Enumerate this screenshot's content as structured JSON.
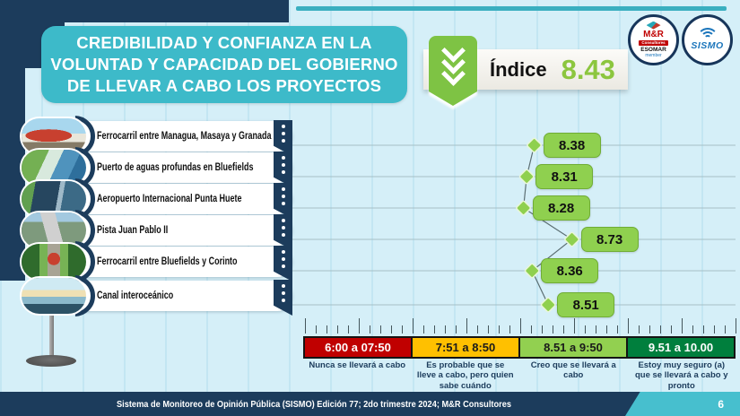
{
  "header": {
    "title_lines": [
      "CREDIBILIDAD Y CONFIANZA EN LA",
      "VOLUNTAD Y CAPACIDAD DEL GOBIERNO",
      "DE LLEVAR A CABO LOS PROYECTOS"
    ],
    "index_label": "Índice",
    "index_value": "8.43"
  },
  "logos": {
    "mr": {
      "name": "M&R Consultores",
      "line1": "M&R",
      "line2": "Consultores",
      "line3": "ESOMAR",
      "line4": "member"
    },
    "sismo": {
      "name": "SISMO",
      "text": "SISMO"
    }
  },
  "projects": [
    {
      "label": "Ferrocarril entre Managua, Masaya y Granada",
      "value": 8.38,
      "value_label": "8.38"
    },
    {
      "label": "Puerto de aguas profundas en Bluefields",
      "value": 8.31,
      "value_label": "8.31"
    },
    {
      "label": "Aeropuerto Internacional Punta Huete",
      "value": 8.28,
      "value_label": "8.28"
    },
    {
      "label": "Pista Juan Pablo II",
      "value": 8.73,
      "value_label": "8.73"
    },
    {
      "label": "Ferrocarril entre Bluefields y Corinto",
      "value": 8.36,
      "value_label": "8.36"
    },
    {
      "label": "Canal interoceánico",
      "value": 8.51,
      "value_label": "8.51"
    }
  ],
  "scale": {
    "segments": [
      {
        "range": "6:00 a 07:50",
        "desc": "Nunca se llevará a cabo",
        "color": "#c00000",
        "text_color": "#ffffff"
      },
      {
        "range": "7:51 a 8:50",
        "desc": "Es probable que se lleve a cabo, pero quien sabe cuándo",
        "color": "#ffc000",
        "text_color": "#1a1a1a"
      },
      {
        "range": "8.51 a 9:50",
        "desc": "Creo que se llevará a cabo",
        "color": "#92d050",
        "text_color": "#1a1a1a"
      },
      {
        "range": "9.51 a 10.00",
        "desc": "Estoy muy seguro (a) que se llevará a cabo y pronto",
        "color": "#007f3d",
        "text_color": "#ffffff"
      }
    ]
  },
  "footer": {
    "text": "Sistema de Monitoreo de Opinión Pública (SISMO) Edición 77; 2do trimestre 2024; M&R Consultores",
    "page_number": "6"
  },
  "chart_data": {
    "type": "scatter",
    "subtype": "horizontal dot plot with diamond markers, connected zigzag line and value labels",
    "title": "CREDIBILIDAD Y CONFIANZA EN LA VOLUNTAD Y CAPACIDAD DEL GOBIERNO DE LLEVAR A CABO LOS PROYECTOS",
    "overall_index": 8.43,
    "categories": [
      "Ferrocarril entre Managua, Masaya y Granada",
      "Puerto de aguas profundas en Bluefields",
      "Aeropuerto Internacional Punta Huete",
      "Pista Juan Pablo II",
      "Ferrocarril entre Bluefields y Corinto",
      "Canal interoceánico"
    ],
    "values": [
      8.38,
      8.31,
      8.28,
      8.73,
      8.36,
      8.51
    ],
    "xlim": [
      6,
      10
    ],
    "x_major_tick_step": 0.5,
    "x_minor_tick_step": 0.1,
    "grid": true,
    "marker": "diamond",
    "marker_color": "#8fd04f",
    "bands": [
      {
        "range": [
          6.0,
          7.5
        ],
        "label": "6:00 a 07:50",
        "meaning": "Nunca se llevará a cabo",
        "color": "#c00000"
      },
      {
        "range": [
          7.51,
          8.5
        ],
        "label": "7:51 a 8:50",
        "meaning": "Es probable que se lleve a cabo, pero quien sabe cuándo",
        "color": "#ffc000"
      },
      {
        "range": [
          8.51,
          9.5
        ],
        "label": "8.51 a 9:50",
        "meaning": "Creo que se llevará a cabo",
        "color": "#92d050"
      },
      {
        "range": [
          9.51,
          10.0
        ],
        "label": "9.51 a 10.00",
        "meaning": "Estoy muy seguro (a) que se llevará a cabo y pronto",
        "color": "#007f3d"
      }
    ]
  }
}
